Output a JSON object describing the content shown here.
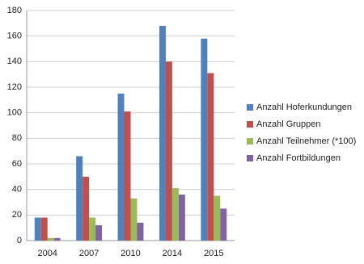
{
  "chart_data": {
    "type": "bar",
    "categories": [
      "2004",
      "2007",
      "2010",
      "2014",
      "2015"
    ],
    "series": [
      {
        "name": "Anzahl Hoferkundungen",
        "color": "#4f81bd",
        "values": [
          18,
          66,
          115,
          168,
          158
        ]
      },
      {
        "name": "Anzahl Gruppen",
        "color": "#c0504d",
        "values": [
          18,
          50,
          101,
          140,
          131
        ]
      },
      {
        "name": "Anzahl Teilnehmer (*100)",
        "color": "#9bbb59",
        "values": [
          2,
          18,
          33,
          41,
          35
        ]
      },
      {
        "name": "Anzahl Fortbildungen",
        "color": "#8064a2",
        "values": [
          2,
          12,
          14,
          36,
          25
        ]
      }
    ],
    "ylim": [
      0,
      180
    ],
    "yticks": [
      0,
      20,
      40,
      60,
      80,
      100,
      120,
      140,
      160,
      180
    ],
    "grid": true,
    "legend": "right"
  }
}
